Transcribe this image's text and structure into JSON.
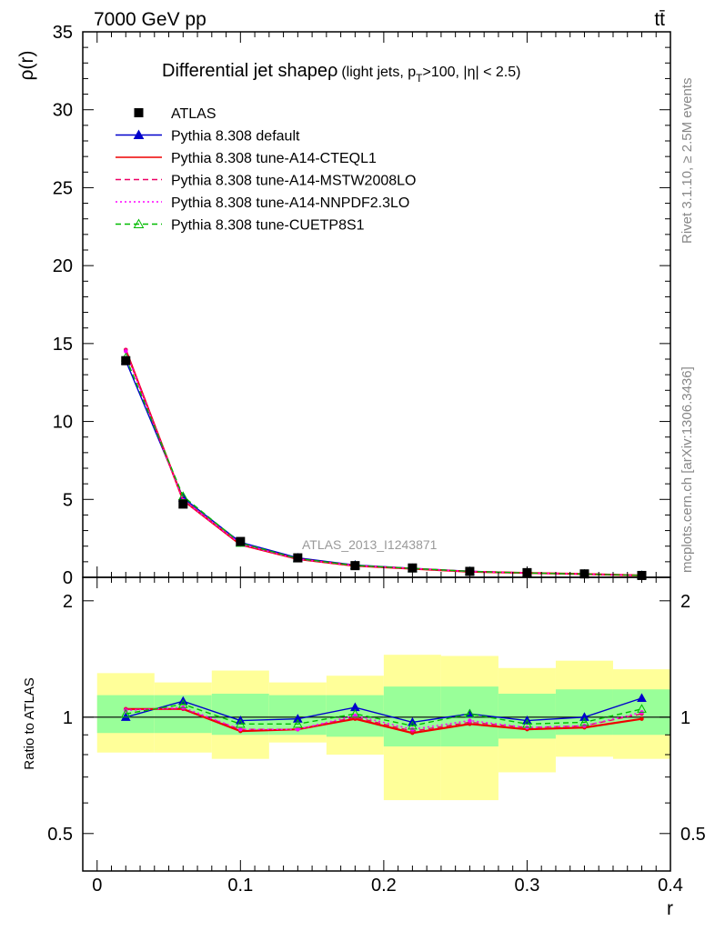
{
  "header": {
    "left": "7000 GeV pp",
    "right": "tt̄"
  },
  "side_labels": {
    "rivet": "Rivet 3.1.10, ≥ 2.5M events",
    "mcplots": "mcplots.cern.ch [arXiv:1306.3436]"
  },
  "chart_data": {
    "type": "line",
    "title": "Differential jet shapeρ",
    "title_suffix_pre": "(light jets, p",
    "title_suffix_sub": "T",
    "title_suffix_post": ">100, |η| < 2.5)",
    "xlabel": "r",
    "ylabel": "ρ(r)",
    "ratio_ylabel": "Ratio to ATLAS",
    "analysis_label": "ATLAS_2013_I1243871",
    "xlim": [
      -0.01,
      0.4
    ],
    "ylim": [
      0,
      35
    ],
    "ratio_ylim": [
      0.4,
      2.3
    ],
    "x_ticks": [
      "0",
      "0.1",
      "0.2",
      "0.3",
      "0.4"
    ],
    "y_ticks": [
      "0",
      "5",
      "10",
      "15",
      "20",
      "25",
      "30",
      "35"
    ],
    "ratio_ticks": [
      "0.5",
      "1",
      "2"
    ],
    "x": [
      0.02,
      0.06,
      0.1,
      0.14,
      0.18,
      0.22,
      0.26,
      0.3,
      0.34,
      0.38
    ],
    "bin_edges": [
      0.0,
      0.04,
      0.08,
      0.12,
      0.16,
      0.2,
      0.24,
      0.28,
      0.32,
      0.36,
      0.4
    ],
    "data": {
      "name": "ATLAS",
      "values": [
        13.9,
        4.7,
        2.3,
        1.25,
        0.75,
        0.6,
        0.38,
        0.3,
        0.22,
        0.12
      ]
    },
    "band_inner": {
      "lo": [
        0.91,
        0.91,
        0.9,
        0.9,
        0.89,
        0.84,
        0.84,
        0.88,
        0.9,
        0.9
      ],
      "hi": [
        1.14,
        1.14,
        1.15,
        1.14,
        1.14,
        1.2,
        1.2,
        1.15,
        1.18,
        1.18
      ]
    },
    "band_outer": {
      "lo": [
        0.81,
        0.81,
        0.78,
        0.86,
        0.8,
        0.61,
        0.61,
        0.72,
        0.79,
        0.78
      ],
      "hi": [
        1.3,
        1.23,
        1.32,
        1.23,
        1.28,
        1.45,
        1.44,
        1.34,
        1.4,
        1.33
      ]
    },
    "series": [
      {
        "name": "Pythia 8.308 default",
        "color": "#0000cc",
        "style": "solid",
        "marker": "triangle-filled",
        "values": [
          13.9,
          5.1,
          2.25,
          1.25,
          0.79,
          0.58,
          0.39,
          0.29,
          0.22,
          0.13
        ],
        "ratio": [
          1.0,
          1.1,
          0.98,
          0.99,
          1.06,
          0.97,
          1.02,
          0.98,
          1.0,
          1.12
        ]
      },
      {
        "name": "Pythia 8.308 tune-A14-CTEQL1",
        "color": "#ee0000",
        "style": "solid",
        "marker": "none",
        "values": [
          14.6,
          4.95,
          2.1,
          1.17,
          0.74,
          0.55,
          0.36,
          0.28,
          0.21,
          0.12
        ],
        "ratio": [
          1.05,
          1.05,
          0.92,
          0.93,
          0.99,
          0.91,
          0.96,
          0.93,
          0.94,
          0.99
        ]
      },
      {
        "name": "Pythia 8.308 tune-A14-MSTW2008LO",
        "color": "#ee0066",
        "style": "dashed",
        "marker": "none",
        "values": [
          14.6,
          4.95,
          2.12,
          1.17,
          0.75,
          0.55,
          0.37,
          0.28,
          0.21,
          0.12
        ],
        "ratio": [
          1.05,
          1.05,
          0.93,
          0.93,
          1.0,
          0.92,
          0.97,
          0.94,
          0.95,
          1.02
        ]
      },
      {
        "name": "Pythia 8.308 tune-A14-NNPDF2.3LO",
        "color": "#ff00ff",
        "style": "dotted",
        "marker": "none",
        "values": [
          14.5,
          4.95,
          2.13,
          1.17,
          0.75,
          0.56,
          0.37,
          0.28,
          0.21,
          0.12
        ],
        "ratio": [
          1.04,
          1.06,
          0.93,
          0.93,
          1.01,
          0.93,
          0.98,
          0.94,
          0.95,
          1.03
        ]
      },
      {
        "name": "Pythia 8.308 tune-CUETP8S1",
        "color": "#00bb00",
        "style": "dashed",
        "marker": "triangle-open",
        "values": [
          14.1,
          5.2,
          2.2,
          1.2,
          0.76,
          0.57,
          0.38,
          0.28,
          0.21,
          0.12
        ],
        "ratio": [
          1.02,
          1.08,
          0.96,
          0.96,
          1.02,
          0.95,
          1.02,
          0.96,
          0.97,
          1.05
        ]
      }
    ]
  }
}
